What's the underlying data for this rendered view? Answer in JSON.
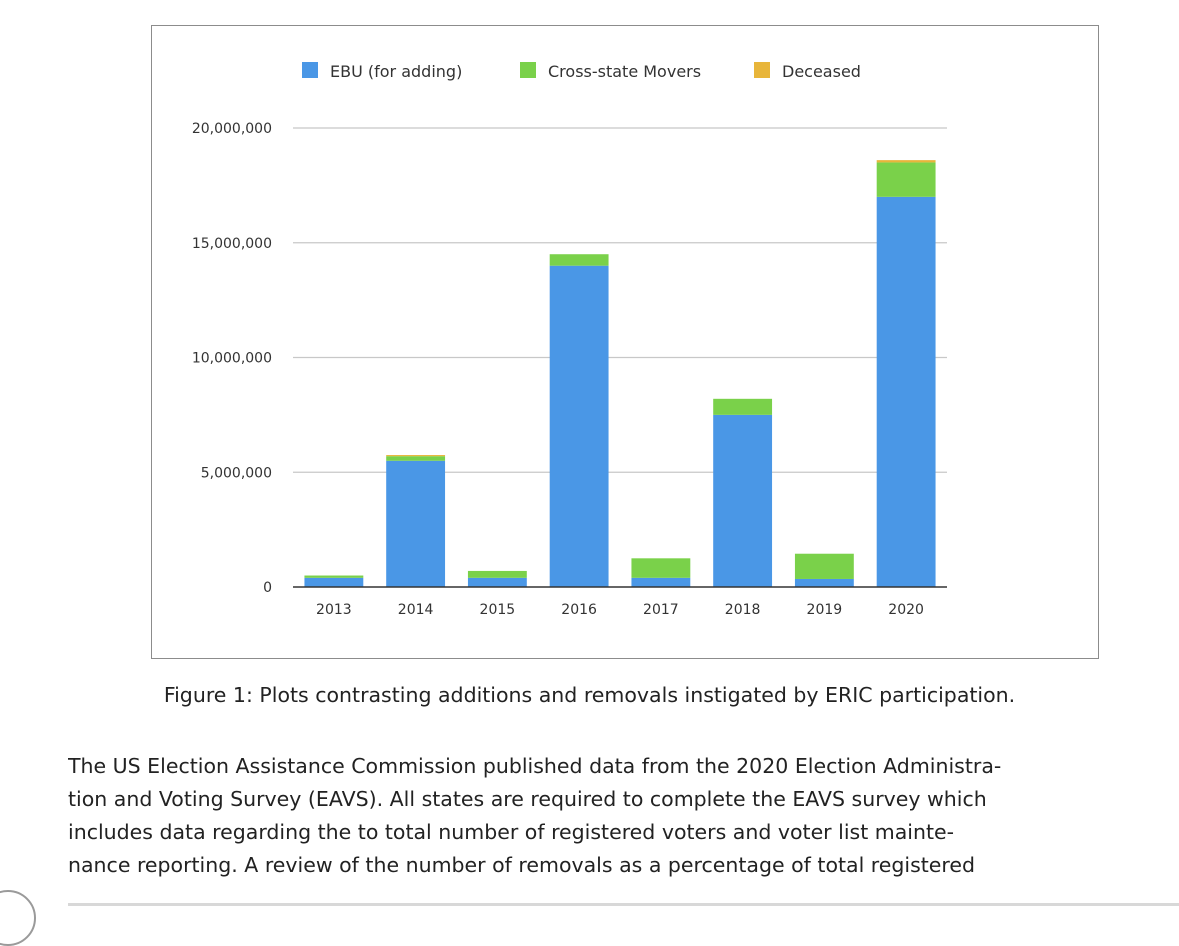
{
  "chart_data": {
    "type": "stacked-bar",
    "categories": [
      "2013",
      "2014",
      "2015",
      "2016",
      "2017",
      "2018",
      "2019",
      "2020"
    ],
    "series": [
      {
        "name": "EBU (for adding)",
        "color": "#4a97e6",
        "values": [
          400000,
          5500000,
          400000,
          14000000,
          400000,
          7500000,
          350000,
          17000000
        ]
      },
      {
        "name": "Cross-state Movers",
        "color": "#7ad14a",
        "values": [
          100000,
          200000,
          300000,
          500000,
          850000,
          700000,
          1100000,
          1500000
        ]
      },
      {
        "name": "Deceased",
        "color": "#e8b53a",
        "values": [
          0,
          50000,
          0,
          0,
          0,
          0,
          0,
          100000
        ]
      }
    ],
    "yticks": [
      0,
      5000000,
      10000000,
      15000000,
      20000000
    ],
    "ytick_labels": [
      "0",
      "5,000,000",
      "10,000,000",
      "15,000,000",
      "20,000,000"
    ],
    "ylim": [
      0,
      20000000
    ],
    "title": "",
    "xlabel": "",
    "ylabel": "",
    "legend_position": "top",
    "grid": "horizontal"
  },
  "caption": "Figure 1: Plots contrasting additions and removals instigated by ERIC participation.",
  "body_lines": [
    "The US Election Assistance Commission published data from the 2020 Election Administra-",
    "tion and Voting Survey (EAVS). All states are required to complete the EAVS survey which",
    "includes data regarding the to total number of registered voters and voter list mainte-",
    "nance reporting. A review of the number of removals as a percentage of total registered"
  ]
}
